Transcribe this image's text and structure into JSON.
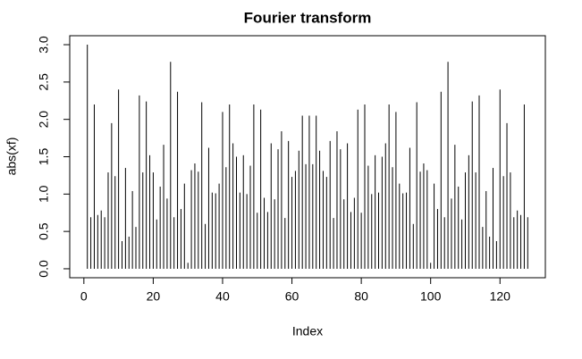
{
  "chart_data": {
    "type": "spike",
    "title": "Fourier transform",
    "x_label": "Index",
    "y_label": "abs(xf)",
    "x": [
      1,
      2,
      3,
      4,
      5,
      6,
      7,
      8,
      9,
      10,
      11,
      12,
      13,
      14,
      15,
      16,
      17,
      18,
      19,
      20,
      21,
      22,
      23,
      24,
      25,
      26,
      27,
      28,
      29,
      30,
      31,
      32,
      33,
      34,
      35,
      36,
      37,
      38,
      39,
      40,
      41,
      42,
      43,
      44,
      45,
      46,
      47,
      48,
      49,
      50,
      51,
      52,
      53,
      54,
      55,
      56,
      57,
      58,
      59,
      60,
      61,
      62,
      63,
      64,
      65,
      66,
      67,
      68,
      69,
      70,
      71,
      72,
      73,
      74,
      75,
      76,
      77,
      78,
      79,
      80,
      81,
      82,
      83,
      84,
      85,
      86,
      87,
      88,
      89,
      90,
      91,
      92,
      93,
      94,
      95,
      96,
      97,
      98,
      99,
      100,
      101,
      102,
      103,
      104,
      105,
      106,
      107,
      108,
      109,
      110,
      111,
      112,
      113,
      114,
      115,
      116,
      117,
      118,
      119,
      120,
      121,
      122,
      123,
      124,
      125,
      126,
      127,
      128
    ],
    "values": [
      3.0,
      0.69,
      2.2,
      0.72,
      0.78,
      0.69,
      1.29,
      1.95,
      1.24,
      2.4,
      0.37,
      1.35,
      0.43,
      1.04,
      0.56,
      2.32,
      1.29,
      2.24,
      1.52,
      1.29,
      0.66,
      1.1,
      1.66,
      0.94,
      2.77,
      0.69,
      2.37,
      0.8,
      1.14,
      0.08,
      1.32,
      1.41,
      1.3,
      2.23,
      0.6,
      1.62,
      1.02,
      1.01,
      1.14,
      2.1,
      1.36,
      2.2,
      1.68,
      1.5,
      1.02,
      1.52,
      1.0,
      1.38,
      2.2,
      0.75,
      2.13,
      0.95,
      0.76,
      1.68,
      0.93,
      1.6,
      1.84,
      0.68,
      1.71,
      1.23,
      1.31,
      1.58,
      2.05,
      1.4,
      2.05,
      1.4,
      2.05,
      1.58,
      1.31,
      1.23,
      1.71,
      0.68,
      1.84,
      1.6,
      0.93,
      1.68,
      0.76,
      0.95,
      2.13,
      0.75,
      2.2,
      1.38,
      1.0,
      1.52,
      1.02,
      1.5,
      1.68,
      2.2,
      1.36,
      2.1,
      1.14,
      1.01,
      1.02,
      1.62,
      0.6,
      2.23,
      1.3,
      1.41,
      1.32,
      0.08,
      1.14,
      0.8,
      2.37,
      0.69,
      2.77,
      0.94,
      1.66,
      1.1,
      0.66,
      1.29,
      1.52,
      2.24,
      1.29,
      2.32,
      0.56,
      1.04,
      0.43,
      1.35,
      0.37,
      2.4,
      1.24,
      1.95,
      1.29,
      0.69,
      0.78,
      0.72,
      2.2,
      0.69
    ],
    "color": "#000000",
    "xlim": [
      -4.08,
      133.08
    ],
    "xticks": [
      0,
      20,
      40,
      60,
      80,
      100,
      120
    ],
    "ylim": [
      -0.12,
      3.12
    ],
    "yticks": [
      {
        "value": 0,
        "label": "0.0"
      },
      {
        "value": 0.5,
        "label": "0.5"
      },
      {
        "value": 1,
        "label": "1.0"
      },
      {
        "value": 1.5,
        "label": "1.5"
      },
      {
        "value": 2,
        "label": "2.0"
      },
      {
        "value": 2.5,
        "label": "2.5"
      },
      {
        "value": 3,
        "label": "3.0"
      }
    ]
  }
}
